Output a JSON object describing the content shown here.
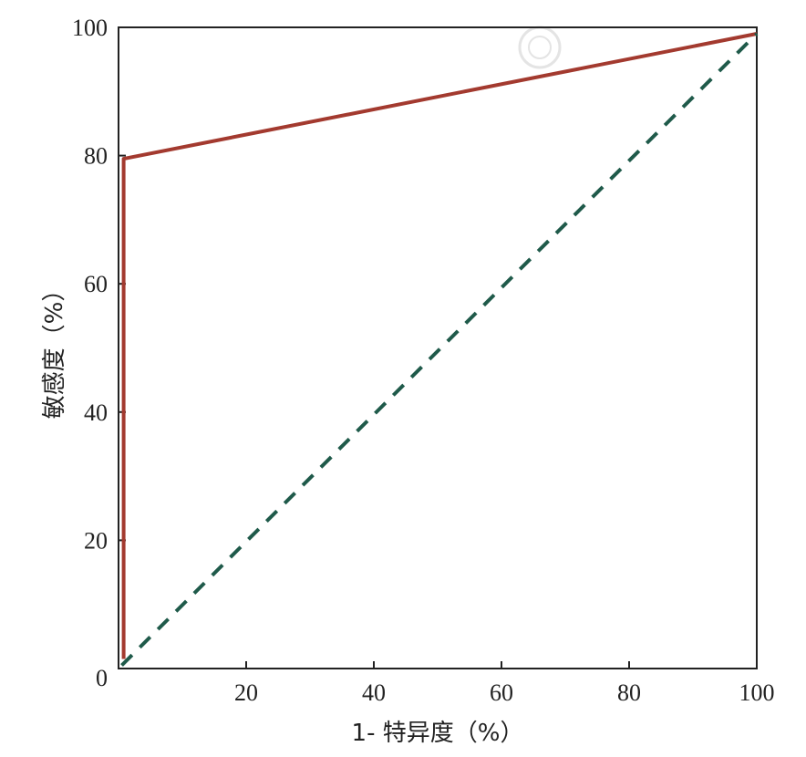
{
  "chart_data": {
    "type": "line",
    "title": "",
    "xlabel": "1- 特异度（%）",
    "ylabel": "敏感度（%）",
    "xlim": [
      0,
      100
    ],
    "ylim": [
      0,
      100
    ],
    "x_ticks": [
      "20",
      "40",
      "60",
      "80",
      "100"
    ],
    "y_ticks": [
      "0",
      "20",
      "40",
      "60",
      "80",
      "100"
    ],
    "grid": false,
    "legend": "none",
    "series": [
      {
        "style": "solid",
        "color": "#a33a2f",
        "points": [
          [
            0.8,
            1.5
          ],
          [
            0.8,
            79.5
          ],
          [
            100,
            99
          ]
        ]
      },
      {
        "style": "dashed",
        "color": "#1f5a4a",
        "points": [
          [
            0.5,
            0.5
          ],
          [
            100,
            99
          ]
        ]
      }
    ]
  }
}
